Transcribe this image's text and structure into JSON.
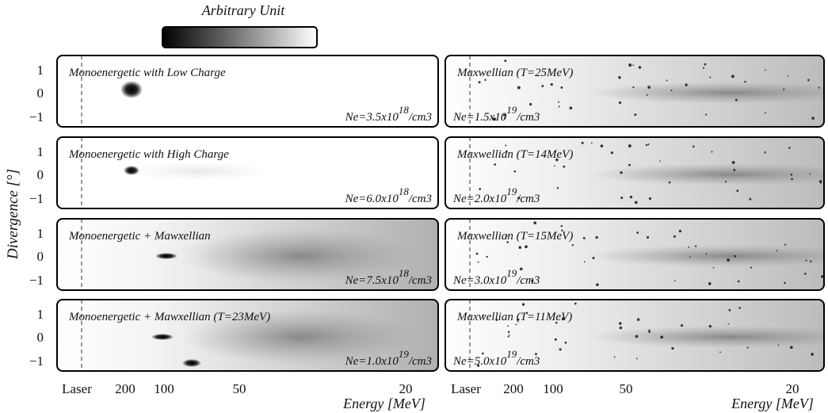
{
  "colorbar": {
    "title": "Arbitrary Unit"
  },
  "y_axis": {
    "label": "Divergence [°]",
    "ticks": [
      "1",
      "0",
      "−1"
    ]
  },
  "x_axis": {
    "label": "Energy [MeV]",
    "ticks": [
      "Laser",
      "200",
      "100",
      "50",
      "20"
    ]
  },
  "panels": [
    {
      "title": "Monoenergetic with Low Charge",
      "density": {
        "base": "Ne=3.5x10",
        "exp": "18",
        "unit": "/cm3"
      }
    },
    {
      "title": "Monoenergetic with High Charge",
      "density": {
        "base": "Ne=6.0x10",
        "exp": "18",
        "unit": "/cm3"
      }
    },
    {
      "title": "Monoenergetic + Mawxellian",
      "density": {
        "base": "Ne=7.5x10",
        "exp": "18",
        "unit": "/cm3"
      }
    },
    {
      "title": "Monoenergetic + Mawxellian (T=23MeV)",
      "density": {
        "base": "Ne=1.0x10",
        "exp": "19",
        "unit": "/cm3"
      }
    },
    {
      "title": "Maxwellian (T=25MeV)",
      "density": {
        "base": "Ne=1.5x10",
        "exp": "19",
        "unit": "/cm3"
      }
    },
    {
      "title": "Maxwellian (T=14MeV)",
      "density": {
        "base": "Ne=2.0x10",
        "exp": "19",
        "unit": "/cm3"
      }
    },
    {
      "title": "Maxwellian (T=15MeV)",
      "density": {
        "base": "Ne=3.0x10",
        "exp": "19",
        "unit": "/cm3"
      }
    },
    {
      "title": "Maxwellian (T=11MeV)",
      "density": {
        "base": "Ne=5.0x10",
        "exp": "19",
        "unit": "/cm3"
      }
    }
  ]
}
